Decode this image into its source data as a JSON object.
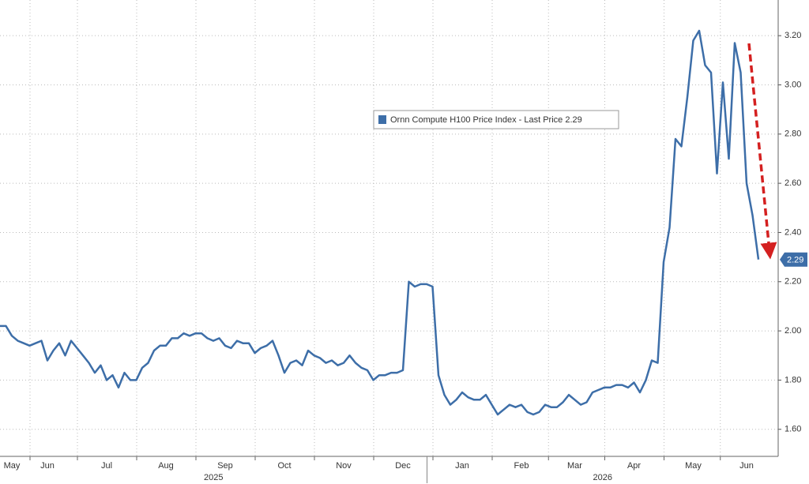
{
  "chart_data": {
    "type": "line",
    "categories": [
      null,
      null,
      "May",
      null,
      null,
      null,
      null,
      null,
      "Jun",
      null,
      null,
      null,
      null,
      null,
      null,
      null,
      null,
      null,
      "Jul",
      null,
      null,
      null,
      null,
      null,
      null,
      null,
      null,
      null,
      "Aug",
      null,
      null,
      null,
      null,
      null,
      null,
      null,
      null,
      null,
      "Sep",
      null,
      null,
      null,
      null,
      null,
      null,
      null,
      null,
      null,
      "Oct",
      null,
      null,
      null,
      null,
      null,
      null,
      null,
      null,
      null,
      "Nov",
      null,
      null,
      null,
      null,
      null,
      null,
      null,
      null,
      null,
      "Dec",
      null,
      null,
      null,
      null,
      null,
      null,
      null,
      null,
      null,
      "Jan",
      null,
      null,
      null,
      null,
      null,
      null,
      null,
      null,
      null,
      "Feb",
      null,
      null,
      null,
      null,
      null,
      null,
      null,
      null,
      "Mar",
      null,
      null,
      null,
      null,
      null,
      null,
      null,
      null,
      null,
      "Apr",
      null,
      null,
      null,
      null,
      null,
      null,
      null,
      null,
      null,
      "May",
      null,
      null,
      null,
      null,
      null,
      null,
      null,
      null,
      "Jun",
      null,
      null
    ],
    "x_axis_years": [
      "2025",
      "2026"
    ],
    "series": [
      {
        "name": "Ornn Compute H100 Price Index - Last Price 2.29",
        "color": "#3d6ea8",
        "values": [
          2.02,
          2.02,
          1.98,
          1.96,
          1.95,
          1.94,
          1.95,
          1.96,
          1.88,
          1.92,
          1.95,
          1.9,
          1.96,
          1.93,
          1.9,
          1.87,
          1.83,
          1.86,
          1.8,
          1.82,
          1.77,
          1.83,
          1.8,
          1.8,
          1.85,
          1.87,
          1.92,
          1.94,
          1.94,
          1.97,
          1.97,
          1.99,
          1.98,
          1.99,
          1.99,
          1.97,
          1.96,
          1.97,
          1.94,
          1.93,
          1.96,
          1.95,
          1.95,
          1.91,
          1.93,
          1.94,
          1.96,
          1.9,
          1.83,
          1.87,
          1.88,
          1.86,
          1.92,
          1.9,
          1.89,
          1.87,
          1.88,
          1.86,
          1.87,
          1.9,
          1.87,
          1.85,
          1.84,
          1.8,
          1.82,
          1.82,
          1.83,
          1.83,
          1.84,
          2.2,
          2.18,
          2.19,
          2.19,
          2.18,
          1.82,
          1.74,
          1.7,
          1.72,
          1.75,
          1.73,
          1.72,
          1.72,
          1.74,
          1.7,
          1.66,
          1.68,
          1.7,
          1.69,
          1.7,
          1.67,
          1.66,
          1.67,
          1.7,
          1.69,
          1.69,
          1.71,
          1.74,
          1.72,
          1.7,
          1.71,
          1.75,
          1.76,
          1.77,
          1.77,
          1.78,
          1.78,
          1.77,
          1.79,
          1.75,
          1.8,
          1.88,
          1.87,
          2.28,
          2.42,
          2.78,
          2.75,
          2.95,
          3.18,
          3.22,
          3.08,
          3.05,
          2.64,
          3.01,
          2.7,
          3.17,
          3.05,
          2.6,
          2.47,
          2.29
        ]
      }
    ],
    "last_price": 2.29,
    "ylim": [
      1.49,
      3.345
    ],
    "yticks": [
      {
        "value": 1.6,
        "label": "1.60"
      },
      {
        "value": 1.8,
        "label": "1.80"
      },
      {
        "value": 2.0,
        "label": "2.00"
      },
      {
        "value": 2.2,
        "label": "2.20"
      },
      {
        "value": 2.4,
        "label": "2.40"
      },
      {
        "value": 2.6,
        "label": "2.60"
      },
      {
        "value": 2.8,
        "label": "2.80"
      },
      {
        "value": 3.0,
        "label": "3.00"
      },
      {
        "value": 3.2,
        "label": "3.20"
      }
    ],
    "grid": true
  }
}
